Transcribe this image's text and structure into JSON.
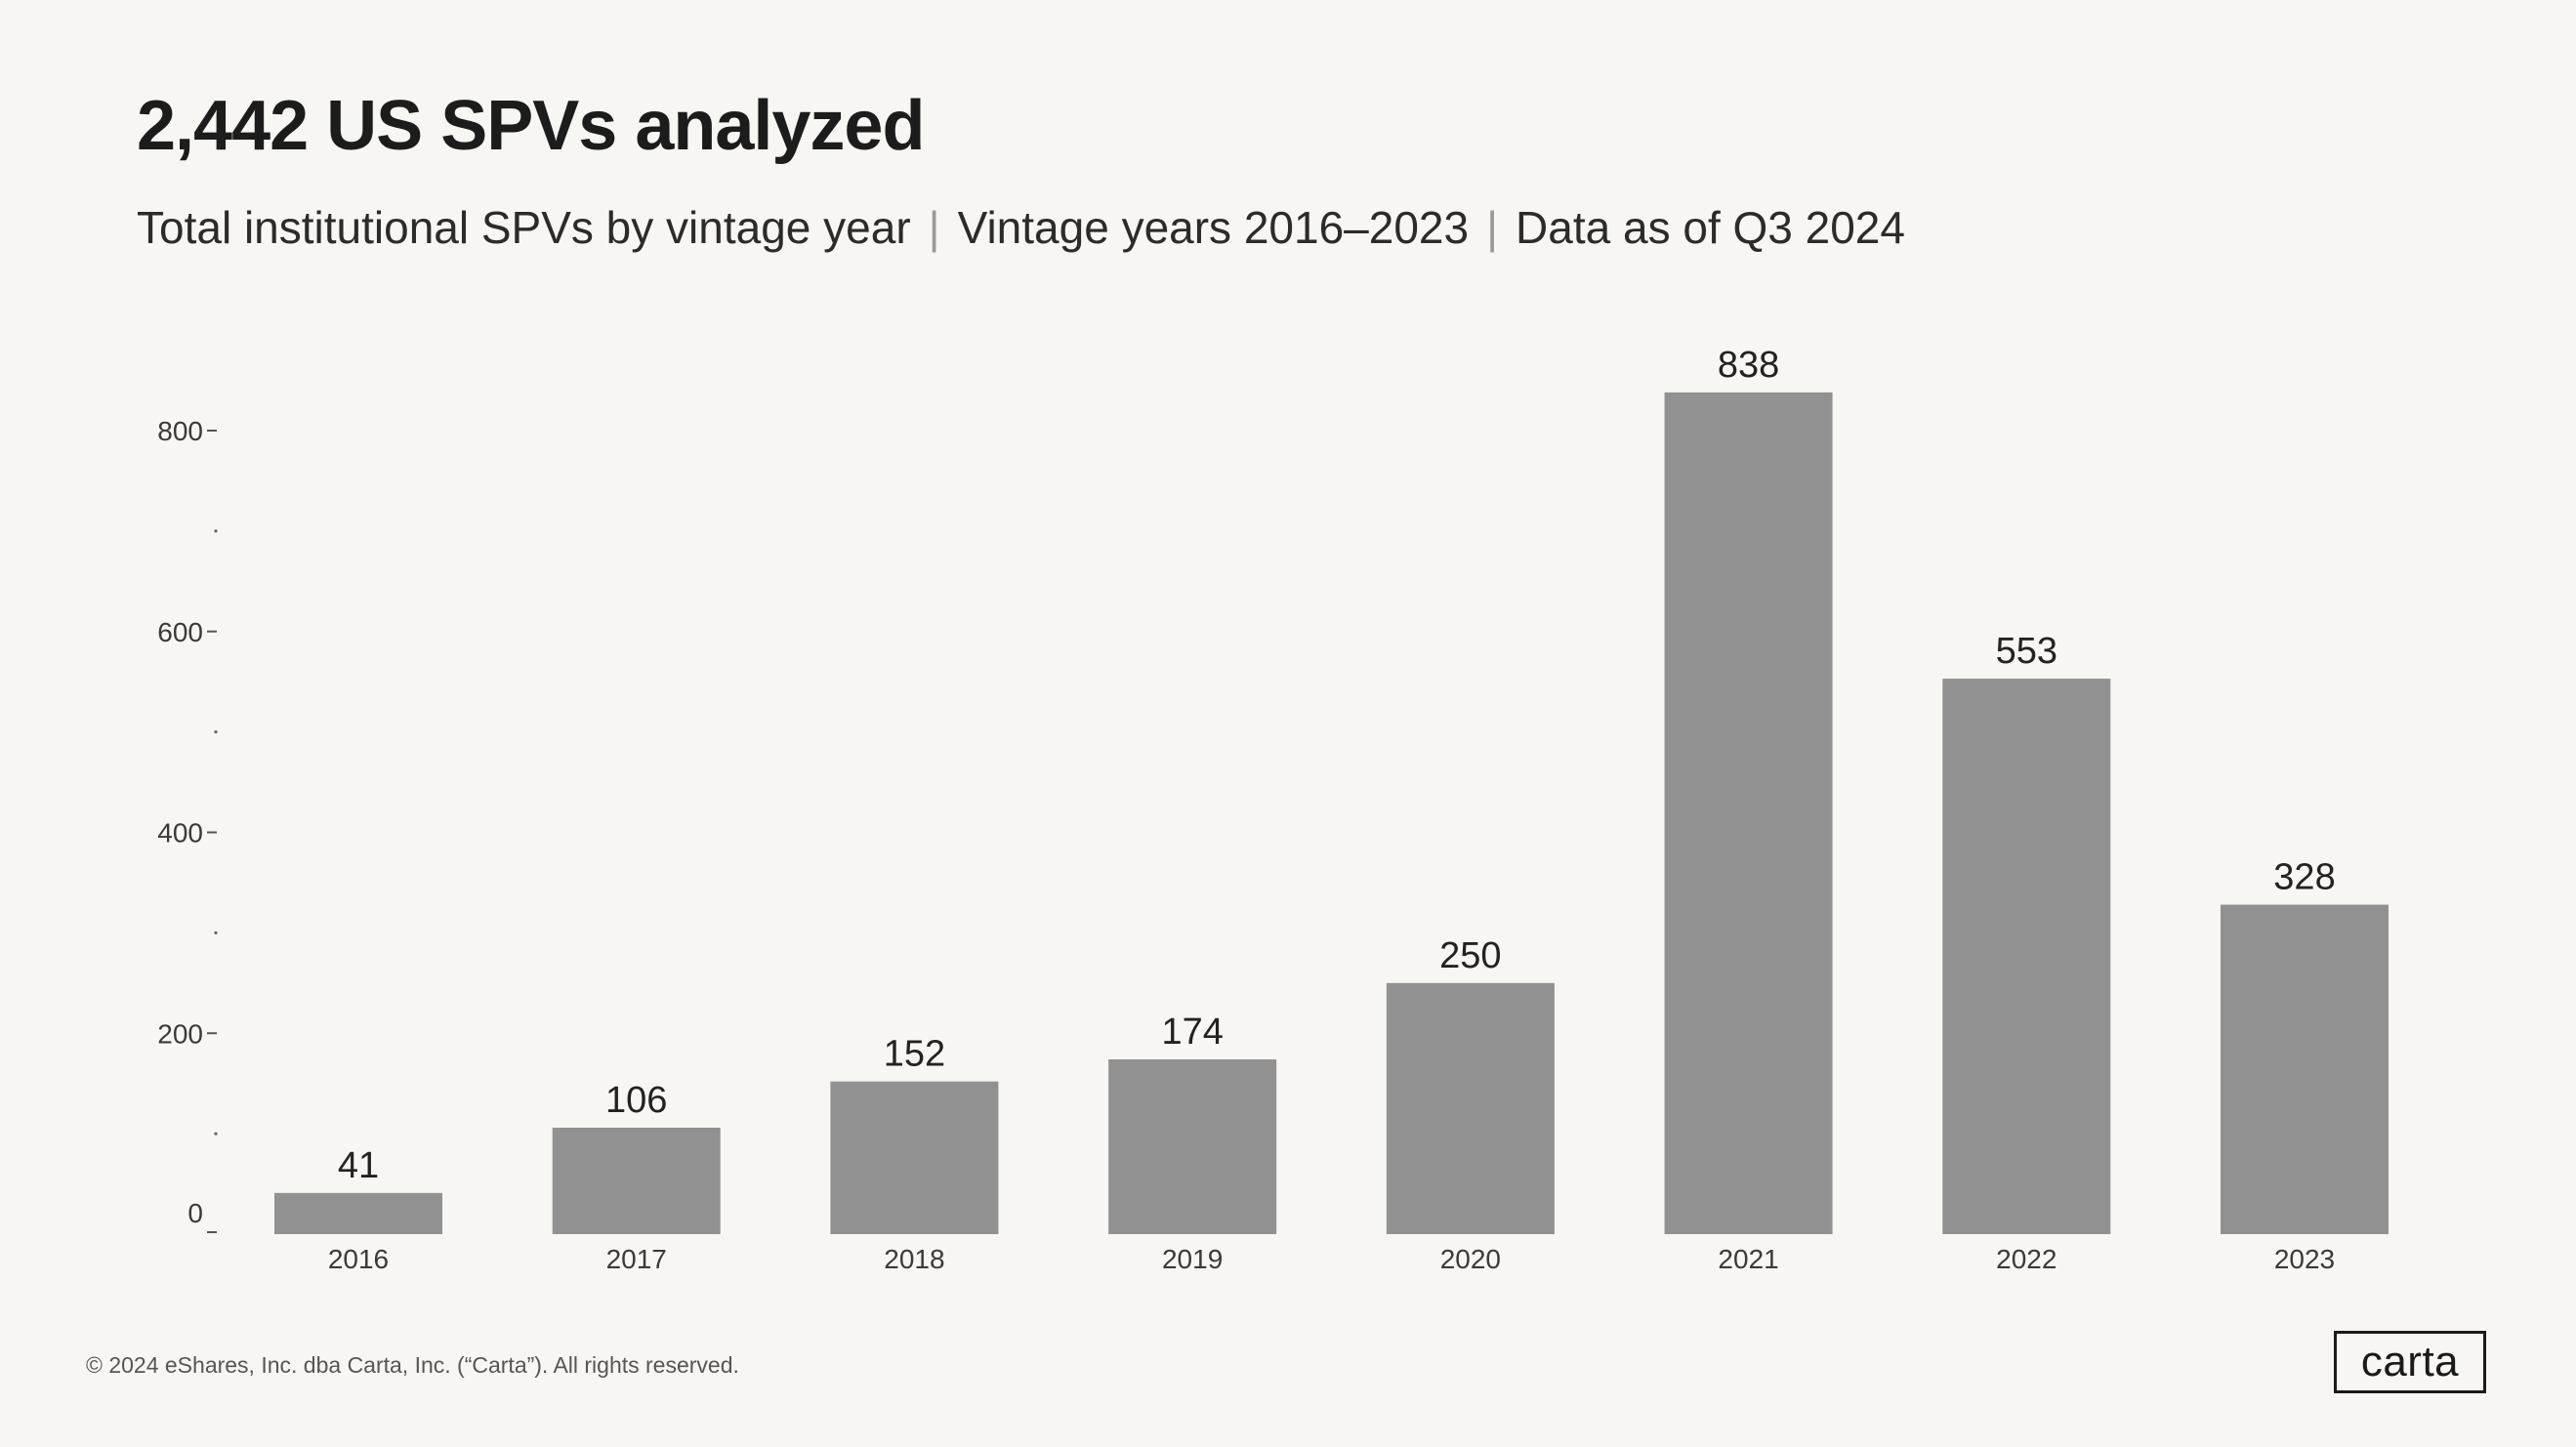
{
  "header": {
    "title": "2,442 US SPVs analyzed",
    "subtitle_parts": [
      "Total institutional SPVs by vintage year",
      "Vintage years 2016–2023",
      "Data as of Q3 2024"
    ],
    "separator": "|"
  },
  "chart_data": {
    "type": "bar",
    "title": "2,442 US SPVs analyzed",
    "subtitle": "Total institutional SPVs by vintage year | Vintage years 2016–2023 | Data as of Q3 2024",
    "categories": [
      "2016",
      "2017",
      "2018",
      "2019",
      "2020",
      "2021",
      "2022",
      "2023"
    ],
    "values": [
      41,
      106,
      152,
      174,
      250,
      838,
      553,
      328
    ],
    "data_labels": [
      "41",
      "106",
      "152",
      "174",
      "250",
      "838",
      "553",
      "328"
    ],
    "xlabel": "",
    "ylabel": "",
    "ylim": [
      0,
      880
    ],
    "y_ticks": [
      0,
      200,
      400,
      600,
      800
    ],
    "y_tick_labels": [
      "0",
      "200",
      "400",
      "600",
      "800"
    ],
    "y_minor_ticks": [
      100,
      300,
      500,
      700
    ],
    "grid": false,
    "bar_color": "#919191"
  },
  "footer": {
    "copyright": "© 2024 eShares, Inc. dba Carta, Inc. (“Carta”). All rights reserved."
  },
  "brand": {
    "logo_text": "carta"
  }
}
